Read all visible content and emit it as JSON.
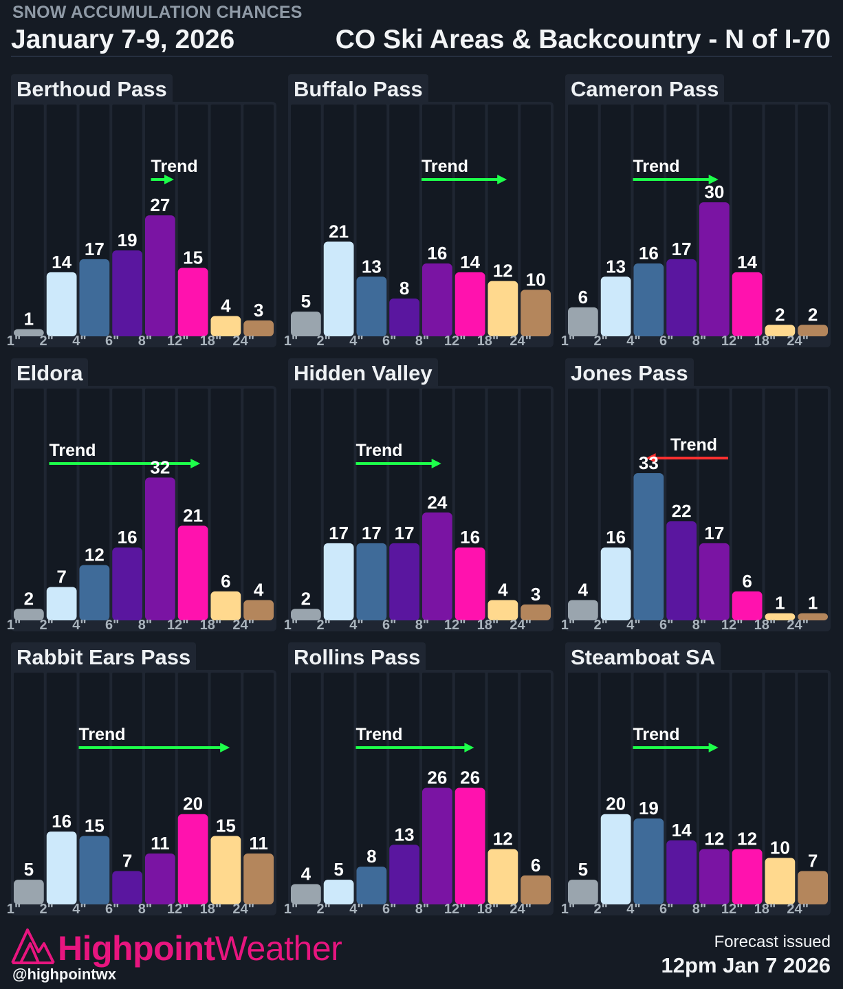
{
  "header": {
    "kicker": "SNOW ACCUMULATION CHANCES",
    "date": "January 7-9, 2026",
    "region": "CO Ski Areas & Backcountry - N of I-70"
  },
  "footer": {
    "brand_bold": "Highpoint",
    "brand_light": "Weather",
    "handle": "@highpointwx",
    "issued_label": "Forecast issued",
    "issued_time": "12pm Jan 7 2026"
  },
  "colors": {
    "background": "#151b24",
    "panel": "#1f2632",
    "bins": [
      "#9aa5ae",
      "#cde9fb",
      "#3f6b99",
      "#5a169f",
      "#7a14a3",
      "#ff12ae",
      "#ffd98e",
      "#b4865c"
    ],
    "trend_up": "#1dff4a",
    "trend_down": "#ff3030",
    "brand": "#e8157f"
  },
  "chart_data": [
    {
      "type": "bar",
      "title": "Berthoud Pass",
      "categories": [
        "1\"",
        "2\"",
        "4\"",
        "6\"",
        "8\"",
        "12\"",
        "18\"",
        "24\""
      ],
      "values": [
        1,
        14,
        17,
        19,
        27,
        15,
        4,
        3
      ],
      "trend_label": "Trend",
      "trend": {
        "direction": "up",
        "from_bin": 4.2,
        "to_bin": 4.9
      }
    },
    {
      "type": "bar",
      "title": "Buffalo Pass",
      "categories": [
        "1\"",
        "2\"",
        "4\"",
        "6\"",
        "8\"",
        "12\"",
        "18\"",
        "24\""
      ],
      "values": [
        5,
        21,
        13,
        8,
        16,
        14,
        12,
        10
      ],
      "trend_label": "Trend",
      "trend": {
        "direction": "up",
        "from_bin": 4.0,
        "to_bin": 6.6
      }
    },
    {
      "type": "bar",
      "title": "Cameron Pass",
      "categories": [
        "1\"",
        "2\"",
        "4\"",
        "6\"",
        "8\"",
        "12\"",
        "18\"",
        "24\""
      ],
      "values": [
        6,
        13,
        16,
        17,
        30,
        14,
        2,
        2
      ],
      "trend_label": "Trend",
      "trend": {
        "direction": "up",
        "from_bin": 2.0,
        "to_bin": 4.6
      }
    },
    {
      "type": "bar",
      "title": "Eldora",
      "categories": [
        "1\"",
        "2\"",
        "4\"",
        "6\"",
        "8\"",
        "12\"",
        "18\"",
        "24\""
      ],
      "values": [
        2,
        7,
        12,
        16,
        32,
        21,
        6,
        4
      ],
      "trend_label": "Trend",
      "trend": {
        "direction": "up",
        "from_bin": 1.1,
        "to_bin": 5.7
      }
    },
    {
      "type": "bar",
      "title": "Hidden Valley",
      "categories": [
        "1\"",
        "2\"",
        "4\"",
        "6\"",
        "8\"",
        "12\"",
        "18\"",
        "24\""
      ],
      "values": [
        2,
        17,
        17,
        17,
        24,
        16,
        4,
        3
      ],
      "trend_label": "Trend",
      "trend": {
        "direction": "up",
        "from_bin": 2.0,
        "to_bin": 4.6
      }
    },
    {
      "type": "bar",
      "title": "Jones Pass",
      "categories": [
        "1\"",
        "2\"",
        "4\"",
        "6\"",
        "8\"",
        "12\"",
        "18\"",
        "24\""
      ],
      "values": [
        4,
        16,
        33,
        22,
        17,
        6,
        1,
        1
      ],
      "trend_label": "Trend",
      "trend": {
        "direction": "down",
        "from_bin": 4.9,
        "to_bin": 2.4
      }
    },
    {
      "type": "bar",
      "title": "Rabbit Ears Pass",
      "categories": [
        "1\"",
        "2\"",
        "4\"",
        "6\"",
        "8\"",
        "12\"",
        "18\"",
        "24\""
      ],
      "values": [
        5,
        16,
        15,
        7,
        11,
        20,
        15,
        11
      ],
      "trend_label": "Trend",
      "trend": {
        "direction": "up",
        "from_bin": 2.0,
        "to_bin": 6.6
      }
    },
    {
      "type": "bar",
      "title": "Rollins Pass",
      "categories": [
        "1\"",
        "2\"",
        "4\"",
        "6\"",
        "8\"",
        "12\"",
        "18\"",
        "24\""
      ],
      "values": [
        4,
        5,
        8,
        13,
        26,
        26,
        12,
        6
      ],
      "trend_label": "Trend",
      "trend": {
        "direction": "up",
        "from_bin": 2.0,
        "to_bin": 5.6
      }
    },
    {
      "type": "bar",
      "title": "Steamboat SA",
      "categories": [
        "1\"",
        "2\"",
        "4\"",
        "6\"",
        "8\"",
        "12\"",
        "18\"",
        "24\""
      ],
      "values": [
        5,
        20,
        19,
        14,
        12,
        12,
        10,
        7
      ],
      "trend_label": "Trend",
      "trend": {
        "direction": "up",
        "from_bin": 2.0,
        "to_bin": 4.6
      }
    }
  ]
}
